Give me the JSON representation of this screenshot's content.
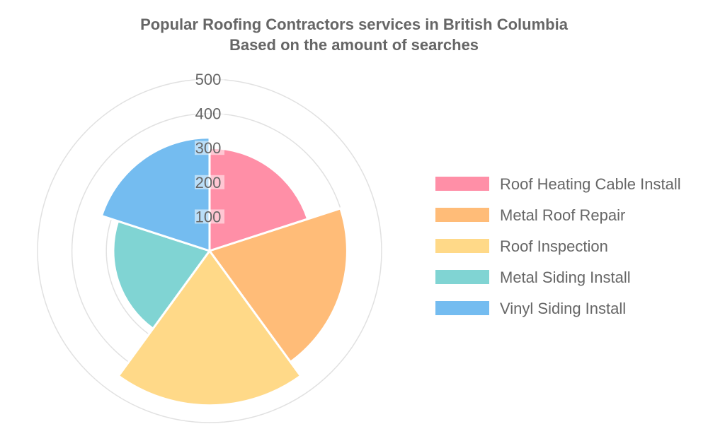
{
  "chart_data": {
    "type": "polarArea",
    "title": [
      "Popular Roofing Contractors services in British Columbia",
      "Based on the amount of searches"
    ],
    "categories": [
      "Roof Heating Cable Install",
      "Metal Roof Repair",
      "Roof Inspection",
      "Metal Siding Install",
      "Vinyl Siding Install"
    ],
    "values": [
      300,
      400,
      450,
      280,
      330
    ],
    "colors": [
      "#ff8fa7",
      "#ffbc78",
      "#ffd988",
      "#80d4d3",
      "#74bcf0"
    ],
    "r_ticks": [
      "100",
      "200",
      "300",
      "400",
      "500"
    ],
    "r_max": 500,
    "grid": true,
    "legend_position": "right"
  }
}
